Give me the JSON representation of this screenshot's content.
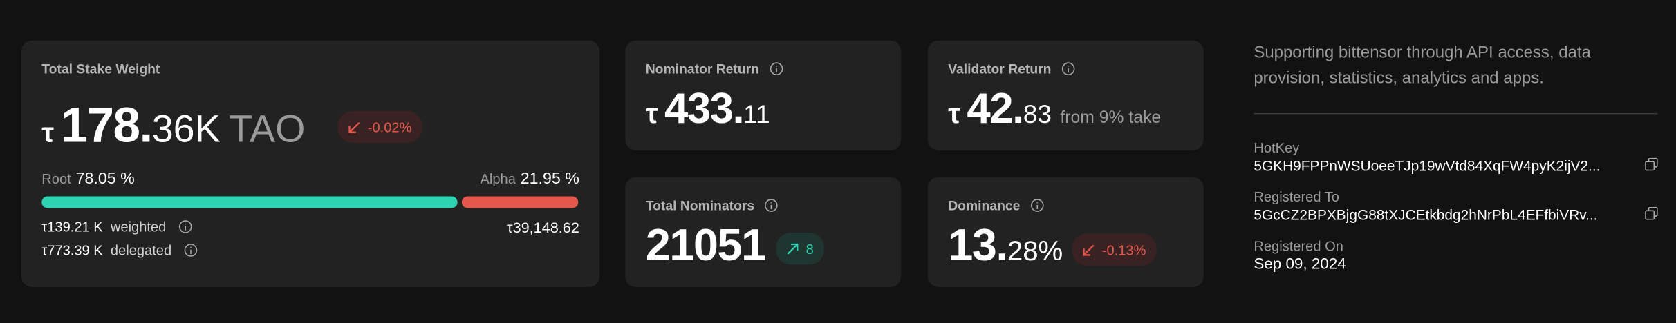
{
  "stake": {
    "title": "Total Stake Weight",
    "symbol": "τ",
    "int": "178.",
    "dec": "36K",
    "unit": "TAO",
    "change": "-0.02%",
    "root": {
      "name": "Root",
      "value": 78.05,
      "label": "78.05 %"
    },
    "alpha": {
      "name": "Alpha",
      "value": 21.95,
      "label": "21.95 %"
    },
    "weighted": {
      "amount": "τ139.21 K",
      "label": "weighted"
    },
    "delegated": {
      "amount": "τ773.39 K",
      "label": "delegated"
    },
    "alpha_amount": "τ39,148.62"
  },
  "nominator_return": {
    "title": "Nominator Return",
    "symbol": "τ",
    "int": "433.",
    "dec": "11"
  },
  "validator_return": {
    "title": "Validator Return",
    "symbol": "τ",
    "int": "42.",
    "dec": "83",
    "note": "from 9% take"
  },
  "total_nominators": {
    "title": "Total Nominators",
    "value": "21051",
    "change": "8"
  },
  "dominance": {
    "title": "Dominance",
    "int": "13.",
    "dec": "28%",
    "change": "-0.13%"
  },
  "info": {
    "description": "Supporting bittensor through API access, data provision, statistics, analytics and apps.",
    "hotkey_label": "HotKey",
    "hotkey": "5GKH9FPPnWSUoeeTJp19wVtd84XqFW4pyK2ijV2...",
    "registered_to_label": "Registered To",
    "registered_to": "5GcCZ2BPXBjgG88tXJCEtkbdg2hNrPbL4EFfbiVRv...",
    "registered_on_label": "Registered On",
    "registered_on": "Sep 09, 2024"
  }
}
